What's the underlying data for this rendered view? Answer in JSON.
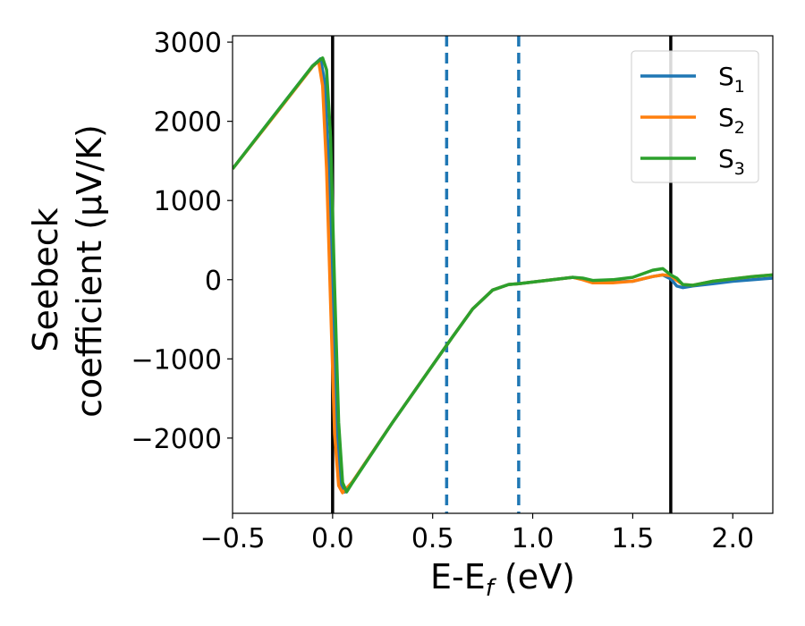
{
  "chart_data": {
    "type": "line",
    "title": "",
    "xlabel": "E-E",
    "xlabel_sub": "f",
    "xlabel_unit": " (eV)",
    "ylabel_line1": "Seebeck",
    "ylabel_line2": "coefficient  (μV/K)",
    "xlim": [
      -0.5,
      2.2
    ],
    "ylim": [
      -2950,
      3080
    ],
    "xticks": [
      -0.5,
      0.0,
      0.5,
      1.0,
      1.5,
      2.0
    ],
    "xtick_labels": [
      "−0.5",
      "0.0",
      "0.5",
      "1.0",
      "1.5",
      "2.0"
    ],
    "yticks": [
      -2000,
      -1000,
      0,
      1000,
      2000,
      3000
    ],
    "ytick_labels": [
      "−2000",
      "−1000",
      "0",
      "1000",
      "2000",
      "3000"
    ],
    "grid": false,
    "legend_position": "top-right",
    "vlines_solid": [
      0.0,
      1.69
    ],
    "vlines_dashed": [
      0.57,
      0.93
    ],
    "vline_solid_color": "#000000",
    "vline_dashed_color": "#1f77b4",
    "series": [
      {
        "name": "S",
        "sub": "1",
        "color": "#1f77b4",
        "x": [
          -0.5,
          -0.3,
          -0.1,
          -0.06,
          -0.04,
          -0.02,
          0.0,
          0.02,
          0.04,
          0.06,
          0.1,
          0.3,
          0.5,
          0.6,
          0.7,
          0.8,
          0.88,
          0.93,
          1.0,
          1.1,
          1.2,
          1.25,
          1.3,
          1.4,
          1.5,
          1.6,
          1.65,
          1.69,
          1.72,
          1.75,
          1.8,
          1.9,
          2.0,
          2.1,
          2.2
        ],
        "y": [
          1400,
          2050,
          2700,
          2790,
          2500,
          1500,
          -200,
          -1900,
          -2600,
          -2680,
          -2550,
          -1800,
          -1080,
          -720,
          -370,
          -130,
          -60,
          -50,
          -30,
          0,
          30,
          10,
          -30,
          -30,
          -20,
          40,
          60,
          10,
          -80,
          -100,
          -80,
          -50,
          -20,
          0,
          20
        ]
      },
      {
        "name": "S",
        "sub": "2",
        "color": "#ff7f0e",
        "x": [
          -0.5,
          -0.3,
          -0.1,
          -0.07,
          -0.05,
          -0.03,
          -0.01,
          0.01,
          0.03,
          0.05,
          0.1,
          0.3,
          0.5,
          0.6,
          0.7,
          0.8,
          0.88,
          0.93,
          1.0,
          1.1,
          1.2,
          1.25,
          1.3,
          1.4,
          1.5,
          1.6,
          1.65,
          1.69,
          1.72,
          1.75,
          1.8,
          1.9,
          2.0,
          2.1,
          2.2
        ],
        "y": [
          1400,
          2040,
          2690,
          2760,
          2450,
          1400,
          -300,
          -1950,
          -2600,
          -2690,
          -2550,
          -1800,
          -1080,
          -720,
          -370,
          -130,
          -60,
          -50,
          -30,
          0,
          30,
          0,
          -40,
          -40,
          -20,
          40,
          60,
          50,
          -10,
          -60,
          -70,
          -20,
          10,
          40,
          60
        ]
      },
      {
        "name": "S",
        "sub": "3",
        "color": "#2ca02c",
        "x": [
          -0.5,
          -0.3,
          -0.1,
          -0.05,
          -0.03,
          -0.01,
          0.01,
          0.03,
          0.05,
          0.07,
          0.1,
          0.3,
          0.5,
          0.6,
          0.7,
          0.8,
          0.88,
          0.93,
          1.0,
          1.1,
          1.2,
          1.25,
          1.3,
          1.4,
          1.5,
          1.6,
          1.65,
          1.69,
          1.72,
          1.75,
          1.8,
          1.9,
          2.0,
          2.1,
          2.2
        ],
        "y": [
          1400,
          2050,
          2700,
          2800,
          2650,
          1800,
          -100,
          -1800,
          -2560,
          -2680,
          -2560,
          -1800,
          -1080,
          -720,
          -370,
          -130,
          -60,
          -50,
          -30,
          0,
          30,
          20,
          -10,
          0,
          30,
          120,
          140,
          60,
          20,
          -60,
          -70,
          -20,
          10,
          40,
          60
        ]
      }
    ]
  }
}
